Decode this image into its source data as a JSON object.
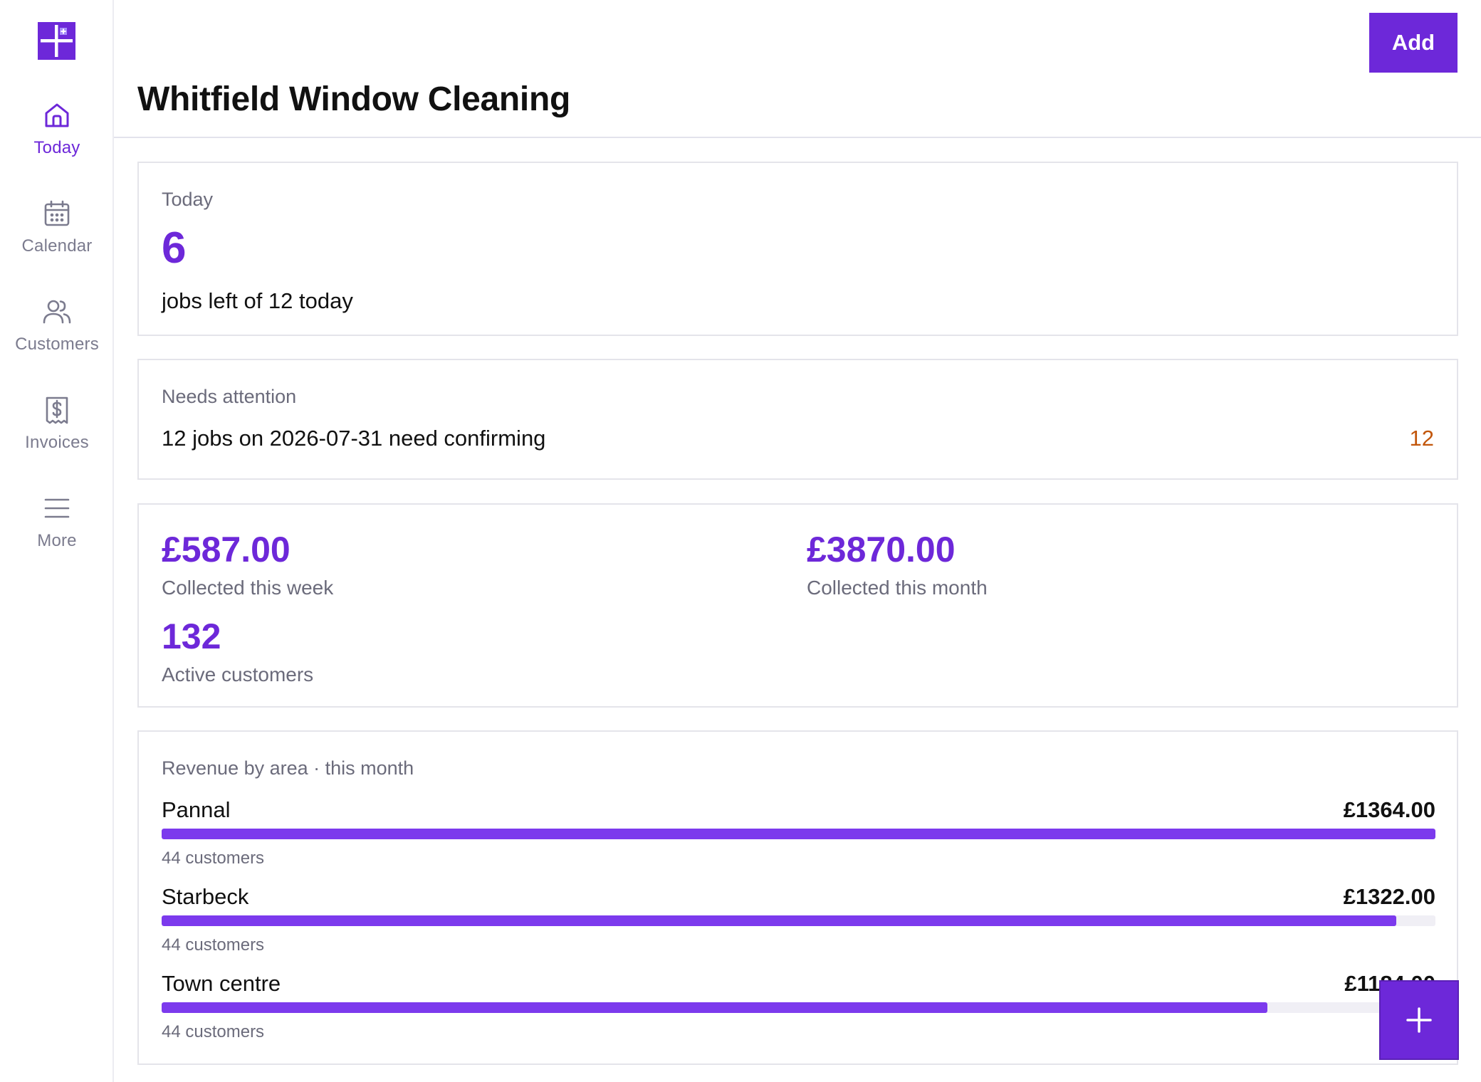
{
  "app": {
    "title": "Whitfield Window Cleaning",
    "accent_color": "#6d28d9",
    "warning_color": "#c2570c"
  },
  "header": {
    "add_label": "Add"
  },
  "sidebar": {
    "logo_icon": "plus-logo-icon",
    "items": [
      {
        "label": "Today",
        "icon": "home-icon",
        "active": true
      },
      {
        "label": "Calendar",
        "icon": "calendar-icon",
        "active": false
      },
      {
        "label": "Customers",
        "icon": "users-icon",
        "active": false
      },
      {
        "label": "Invoices",
        "icon": "receipt-dollar-icon",
        "active": false
      },
      {
        "label": "More",
        "icon": "menu-icon",
        "active": false
      }
    ]
  },
  "today_card": {
    "label": "Today",
    "count": "6",
    "description": "jobs left of 12 today"
  },
  "attention_card": {
    "label": "Needs attention",
    "text": "12 jobs on 2026-07-31 need confirming",
    "count": "12"
  },
  "stats_card": {
    "week_value": "£587.00",
    "week_label": "Collected this week",
    "month_value": "£3870.00",
    "month_label": "Collected this month",
    "customers_value": "132",
    "customers_label": "Active customers"
  },
  "revenue_card": {
    "label": "Revenue by area · this month",
    "areas": [
      {
        "name": "Pannal",
        "amount": "£1364.00",
        "customers": "44 customers",
        "fraction": 1.0
      },
      {
        "name": "Starbeck",
        "amount": "£1322.00",
        "customers": "44 customers",
        "fraction": 0.969
      },
      {
        "name": "Town centre",
        "amount": "£1184.00",
        "customers": "44 customers",
        "fraction": 0.868
      }
    ]
  },
  "fab": {
    "icon": "plus-icon"
  }
}
